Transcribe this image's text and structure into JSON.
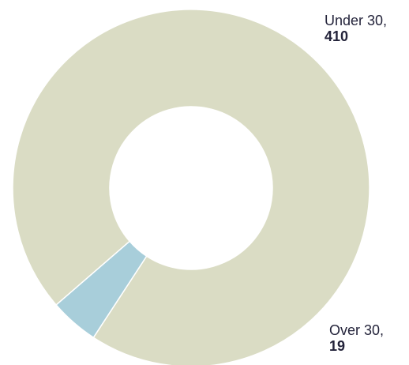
{
  "chart_data": {
    "type": "pie",
    "variant": "donut",
    "slices": [
      {
        "label": "Under 30,",
        "value": 410,
        "value_text": "410",
        "color": "#dadcc4"
      },
      {
        "label": "Over 30,",
        "value": 19,
        "value_text": "19",
        "color": "#a8ceda"
      }
    ],
    "slice_border_color": "#ffffff",
    "label_color": "#23233a"
  }
}
